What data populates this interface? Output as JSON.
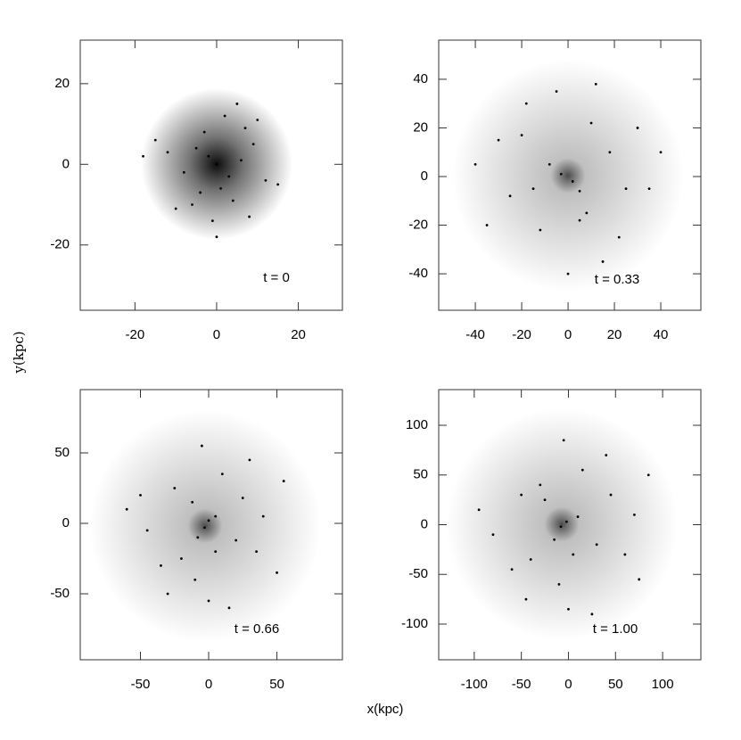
{
  "xlabel": "x(kpc)",
  "ylabel": "y(kpc)",
  "chart_data": [
    {
      "type": "scatter",
      "annotation": "t = 0",
      "color": "#000000",
      "grid": false,
      "xlim": [
        -33.4,
        30.8
      ],
      "ylim": [
        -36.2,
        30.8
      ],
      "xticks": [
        -20,
        0,
        20
      ],
      "yticks": [
        -20,
        0,
        20
      ],
      "x": [
        0,
        -2,
        3,
        -5,
        6,
        1,
        -8,
        9,
        -3,
        4,
        -12,
        12,
        2,
        -6,
        7,
        -15,
        15,
        -1,
        5,
        -10,
        10,
        0,
        -4,
        8,
        -18
      ],
      "y": [
        0,
        2,
        -3,
        4,
        1,
        -6,
        -2,
        5,
        8,
        -9,
        3,
        -4,
        12,
        -10,
        9,
        6,
        -5,
        -14,
        15,
        -11,
        11,
        -18,
        -7,
        -13,
        2
      ]
    },
    {
      "type": "scatter",
      "annotation": "t = 0.33",
      "color": "#000000",
      "grid": false,
      "xlim": [
        -55.8,
        57.3
      ],
      "ylim": [
        -55.0,
        56.1
      ],
      "xticks": [
        -40,
        -20,
        0,
        20,
        40
      ],
      "yticks": [
        -40,
        -20,
        0,
        20,
        40
      ],
      "x": [
        -3,
        2,
        5,
        -8,
        -20,
        -15,
        10,
        18,
        25,
        -25,
        -12,
        5,
        15,
        -30,
        30,
        -5,
        22,
        -35,
        35,
        0,
        -40,
        40,
        12,
        -18,
        8
      ],
      "y": [
        1,
        -2,
        -6,
        5,
        17,
        -5,
        22,
        10,
        -5,
        -8,
        -22,
        -18,
        -35,
        15,
        20,
        35,
        -25,
        -20,
        -5,
        -40,
        5,
        10,
        38,
        30,
        -15
      ]
    },
    {
      "type": "scatter",
      "annotation": "t = 0.66",
      "color": "#000000",
      "grid": false,
      "xlim": [
        -94.1,
        98.0
      ],
      "ylim": [
        -96.8,
        94.9
      ],
      "xticks": [
        -50,
        0,
        50
      ],
      "yticks": [
        -50,
        0,
        50
      ],
      "x": [
        -3,
        0,
        -8,
        5,
        -12,
        20,
        -20,
        25,
        -35,
        35,
        10,
        -10,
        -25,
        0,
        40,
        -45,
        15,
        -50,
        55,
        30,
        -5,
        -30,
        50,
        5,
        -60
      ],
      "y": [
        -3,
        2,
        -10,
        5,
        15,
        -12,
        -25,
        18,
        -30,
        -20,
        35,
        -40,
        25,
        -55,
        5,
        -5,
        -60,
        20,
        30,
        45,
        55,
        -50,
        -35,
        -20,
        10
      ]
    },
    {
      "type": "scatter",
      "annotation": "t = 1.00",
      "color": "#000000",
      "grid": false,
      "xlim": [
        -137.7,
        140.6
      ],
      "ylim": [
        -135.9,
        135.9
      ],
      "xticks": [
        -100,
        -50,
        0,
        50,
        100
      ],
      "yticks": [
        -100,
        -50,
        0,
        50,
        100
      ],
      "x": [
        -8,
        -2,
        -15,
        10,
        -25,
        30,
        -40,
        45,
        -60,
        60,
        15,
        -10,
        -30,
        0,
        70,
        -80,
        25,
        -50,
        85,
        40,
        -5,
        -45,
        75,
        5,
        -95
      ],
      "y": [
        -2,
        3,
        -15,
        8,
        25,
        -20,
        -35,
        30,
        -45,
        -30,
        55,
        -60,
        40,
        -85,
        10,
        -10,
        -90,
        30,
        50,
        70,
        85,
        -75,
        -55,
        -30,
        15
      ]
    }
  ]
}
